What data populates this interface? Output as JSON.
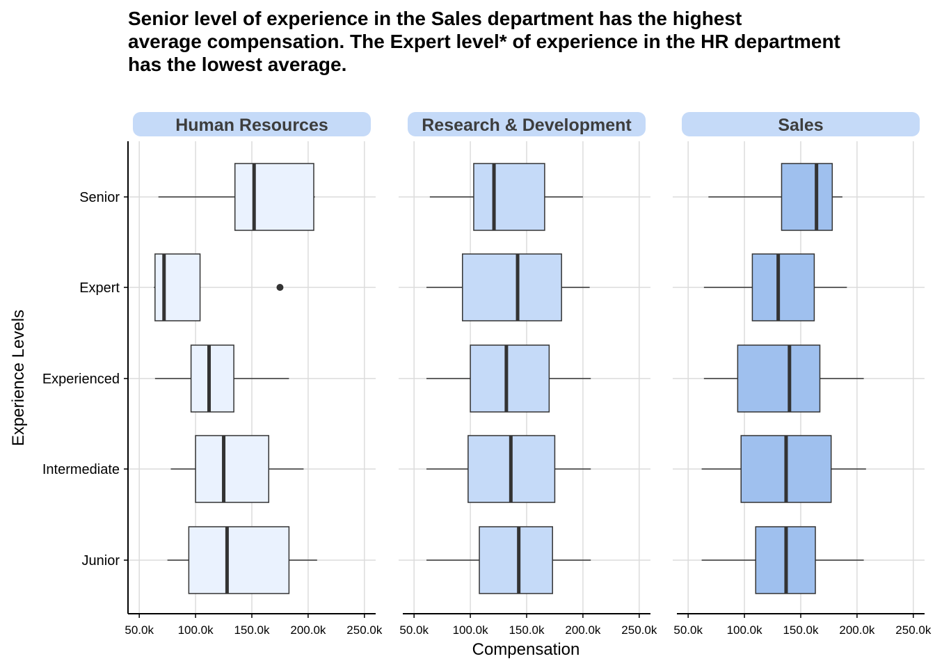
{
  "chart_data": {
    "type": "boxplot",
    "title_lines": [
      "Senior level of experience in the Sales department has the highest",
      "average compensation. The Expert level* of experience in the HR department",
      "has the lowest average."
    ],
    "xlabel": "Compensation",
    "ylabel": "Experience Levels",
    "xlim": [
      40000,
      260000
    ],
    "x_ticks": [
      50000,
      100000,
      150000,
      200000,
      250000
    ],
    "x_tick_labels": [
      "50.0k",
      "100.0k",
      "150.0k",
      "200.0k",
      "250.0k"
    ],
    "categories": [
      "Senior",
      "Expert",
      "Experienced",
      "Intermediate",
      "Junior"
    ],
    "grid": true,
    "panels": [
      {
        "name": "Human Resources",
        "fill": "#eaf2fe",
        "boxes": [
          {
            "category": "Senior",
            "min": 67000,
            "q1": 135000,
            "median": 152000,
            "q3": 205000,
            "max": 206000
          },
          {
            "category": "Expert",
            "min": 63000,
            "q1": 64000,
            "median": 72000,
            "q3": 104000,
            "max": 104000,
            "outliers": [
              175000
            ]
          },
          {
            "category": "Experienced",
            "min": 64000,
            "q1": 96000,
            "median": 112000,
            "q3": 134000,
            "max": 183000
          },
          {
            "category": "Intermediate",
            "min": 78000,
            "q1": 100000,
            "median": 125000,
            "q3": 165000,
            "max": 196000
          },
          {
            "category": "Junior",
            "min": 75000,
            "q1": 94000,
            "median": 128000,
            "q3": 183000,
            "max": 208000
          }
        ]
      },
      {
        "name": "Research & Development",
        "fill": "#c5daf8",
        "boxes": [
          {
            "category": "Senior",
            "min": 64000,
            "q1": 103000,
            "median": 121000,
            "q3": 166000,
            "max": 200000
          },
          {
            "category": "Expert",
            "min": 61000,
            "q1": 93000,
            "median": 142000,
            "q3": 181000,
            "max": 206000
          },
          {
            "category": "Experienced",
            "min": 61000,
            "q1": 100000,
            "median": 132000,
            "q3": 170000,
            "max": 207000
          },
          {
            "category": "Intermediate",
            "min": 61000,
            "q1": 98000,
            "median": 136000,
            "q3": 175000,
            "max": 207000
          },
          {
            "category": "Junior",
            "min": 61000,
            "q1": 108000,
            "median": 143000,
            "q3": 173000,
            "max": 207000
          }
        ]
      },
      {
        "name": "Sales",
        "fill": "#9fc0ee",
        "boxes": [
          {
            "category": "Senior",
            "min": 68000,
            "q1": 133000,
            "median": 164000,
            "q3": 178000,
            "max": 187000
          },
          {
            "category": "Expert",
            "min": 64000,
            "q1": 107000,
            "median": 130000,
            "q3": 162000,
            "max": 191000
          },
          {
            "category": "Experienced",
            "min": 64000,
            "q1": 94000,
            "median": 140000,
            "q3": 167000,
            "max": 206000
          },
          {
            "category": "Intermediate",
            "min": 62000,
            "q1": 97000,
            "median": 137000,
            "q3": 177000,
            "max": 208000
          },
          {
            "category": "Junior",
            "min": 62000,
            "q1": 110000,
            "median": 137000,
            "q3": 163000,
            "max": 206000
          }
        ]
      }
    ]
  }
}
